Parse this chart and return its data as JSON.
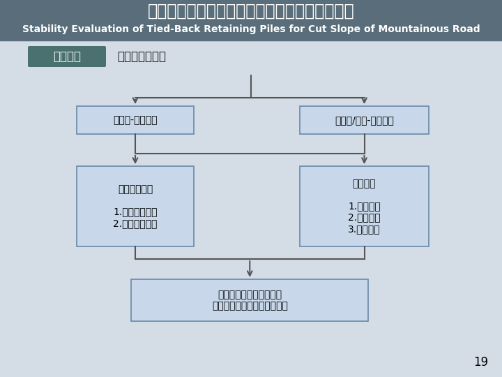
{
  "title_zh": "山區道路邊坡背拉式擋土排樁之穩定性效益評估",
  "title_en": "Stability Evaluation of Tied-Back Retaining Piles for Cut Slope of Mountainous Road",
  "section_label": "研究方法",
  "section_subtitle": "研究執行流程圖",
  "box1_text": "崩積層-均質邊坡",
  "box2_text": "崩積層/岩層-異質邊坡",
  "box3_title": "排樁幾何配置",
  "box3_items": "1.排樁打設長度\n2.排樁打設間距",
  "box4_title": "地錨設計",
  "box4_items": "1.地錨尺寸\n2.地錨預力\n3.地錨傾角",
  "box5_line1": "歸納邊坡背拉式擋土排樁",
  "box5_line2": "穩定工法之設計參數研究成果",
  "page_number": "19",
  "bg_color": "#d4dce6",
  "box_fill": "#c8d8ea",
  "box_edge": "#6888a8",
  "header_bg": "#596e7a",
  "btn_bg": "#4a7070",
  "title_zh_color": "#ffffff",
  "title_en_color": "#ffffff",
  "section_label_color": "#ffffff",
  "subtitle_color": "#111111",
  "arrow_color": "#555555",
  "text_color": "#222222"
}
